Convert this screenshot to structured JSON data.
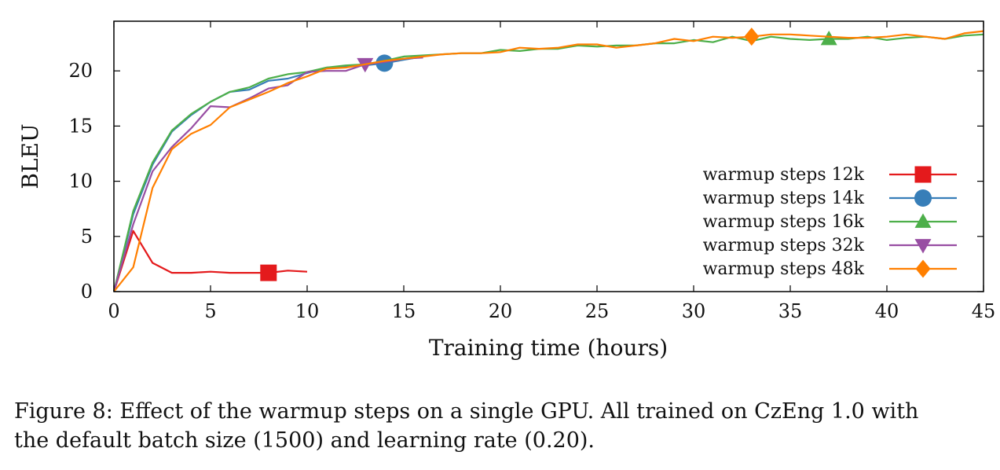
{
  "chart_data": {
    "type": "line",
    "xlabel": "Training time (hours)",
    "ylabel": "BLEU",
    "xlim": [
      0,
      45
    ],
    "ylim": [
      0,
      24.5
    ],
    "xticks": [
      "0",
      "5",
      "10",
      "15",
      "20",
      "25",
      "30",
      "35",
      "40",
      "45"
    ],
    "yticks": [
      "0",
      "5",
      "10",
      "15",
      "20"
    ],
    "legend_position": "bottom-right",
    "series": [
      {
        "name": "warmup steps 12k",
        "color": "#e41a1c",
        "marker": "square",
        "marker_x": 8,
        "x": [
          0,
          1,
          2,
          3,
          4,
          5,
          6,
          7,
          8,
          9,
          10
        ],
        "y": [
          0,
          5.5,
          2.6,
          1.7,
          1.7,
          1.8,
          1.7,
          1.7,
          1.7,
          1.9,
          1.8
        ]
      },
      {
        "name": "warmup steps 14k",
        "color": "#377eb8",
        "marker": "circle",
        "marker_x": 14,
        "x": [
          0,
          1,
          2,
          3,
          4,
          5,
          6,
          7,
          8,
          9,
          10,
          11,
          12,
          13,
          14,
          15,
          16
        ],
        "y": [
          0,
          7.0,
          11.5,
          14.5,
          16.0,
          17.2,
          18.1,
          18.3,
          19.1,
          19.3,
          19.8,
          20.3,
          20.4,
          20.5,
          20.7,
          21.0,
          21.3
        ]
      },
      {
        "name": "warmup steps 16k",
        "color": "#4daf4a",
        "marker": "triangle-up",
        "marker_x": 37,
        "x": [
          0,
          1,
          2,
          3,
          4,
          5,
          6,
          7,
          8,
          9,
          10,
          11,
          12,
          13,
          14,
          15,
          16,
          17,
          18,
          19,
          20,
          21,
          22,
          23,
          24,
          25,
          26,
          27,
          28,
          29,
          30,
          31,
          32,
          33,
          34,
          35,
          36,
          37,
          38,
          39,
          40,
          41,
          42,
          43,
          44,
          45
        ],
        "y": [
          0,
          7.3,
          11.7,
          14.6,
          16.1,
          17.2,
          18.1,
          18.5,
          19.3,
          19.7,
          19.9,
          20.3,
          20.5,
          20.6,
          20.9,
          21.3,
          21.4,
          21.5,
          21.6,
          21.6,
          21.9,
          21.8,
          22.0,
          22.0,
          22.3,
          22.2,
          22.3,
          22.3,
          22.5,
          22.5,
          22.8,
          22.6,
          23.1,
          22.7,
          23.1,
          22.9,
          22.8,
          22.9,
          22.9,
          23.1,
          22.8,
          23.0,
          23.1,
          22.9,
          23.2,
          23.3
        ]
      },
      {
        "name": "warmup steps 32k",
        "color": "#984ea3",
        "marker": "triangle-down",
        "marker_x": 13,
        "x": [
          0,
          1,
          2,
          3,
          4,
          5,
          6,
          7,
          8,
          9,
          10,
          11,
          12,
          13,
          14,
          15,
          16
        ],
        "y": [
          0,
          6.1,
          10.9,
          13.1,
          14.8,
          16.8,
          16.7,
          17.5,
          18.4,
          18.7,
          19.9,
          20.0,
          20.0,
          20.6,
          20.8,
          21.1,
          21.2
        ]
      },
      {
        "name": "warmup steps 48k",
        "color": "#ff7f00",
        "marker": "diamond",
        "marker_x": 33,
        "x": [
          0,
          1,
          2,
          3,
          4,
          5,
          6,
          7,
          8,
          9,
          10,
          11,
          12,
          13,
          14,
          15,
          16,
          17,
          18,
          19,
          20,
          21,
          22,
          23,
          24,
          25,
          26,
          27,
          28,
          29,
          30,
          31,
          32,
          33,
          34,
          35,
          36,
          37,
          38,
          39,
          40,
          41,
          42,
          43,
          44,
          45
        ],
        "y": [
          0,
          2.2,
          9.4,
          12.9,
          14.3,
          15.1,
          16.7,
          17.4,
          18.1,
          18.9,
          19.5,
          20.2,
          20.3,
          20.6,
          20.9,
          21.1,
          21.3,
          21.5,
          21.6,
          21.6,
          21.7,
          22.1,
          22.0,
          22.1,
          22.4,
          22.4,
          22.1,
          22.3,
          22.5,
          22.9,
          22.7,
          23.1,
          23.0,
          23.1,
          23.3,
          23.3,
          23.2,
          23.1,
          23.0,
          23.0,
          23.1,
          23.3,
          23.1,
          22.9,
          23.4,
          23.6
        ]
      }
    ]
  },
  "caption": {
    "line1": "Figure 8: Effect of the warmup steps on a single GPU. All trained on CzEng 1.0 with",
    "line2": "the default batch size (1500) and learning rate (0.20)."
  }
}
